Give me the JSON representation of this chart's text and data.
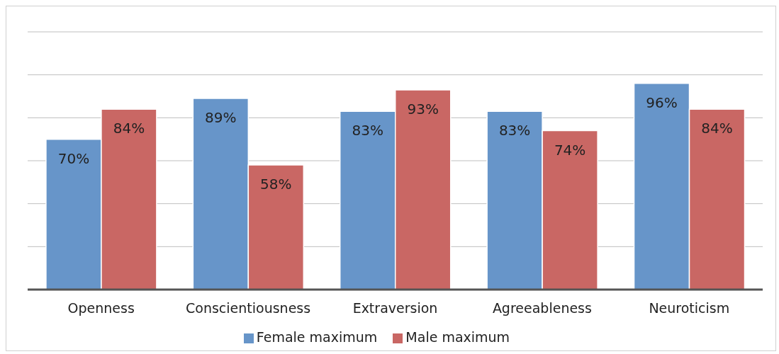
{
  "chart_data": {
    "type": "bar",
    "categories": [
      "Openness",
      "Conscientiousness",
      "Extraversion",
      "Agreeableness",
      "Neuroticism"
    ],
    "series": [
      {
        "name": "Female maximum",
        "color": "#6795c9",
        "values": [
          70,
          89,
          83,
          83,
          96
        ],
        "value_labels": [
          "70%",
          "89%",
          "83%",
          "83%",
          "96%"
        ]
      },
      {
        "name": "Male maximum",
        "color": "#c96764",
        "values": [
          84,
          58,
          93,
          74,
          84
        ],
        "value_labels": [
          "84%",
          "58%",
          "93%",
          "74%",
          "84%"
        ]
      }
    ],
    "ylim": [
      0,
      120
    ],
    "yticks": [
      {
        "value": 0,
        "label": null
      },
      {
        "value": 20,
        "label": null
      },
      {
        "value": 40,
        "label": null
      },
      {
        "value": 60,
        "label": null
      },
      {
        "value": 80,
        "label": null
      },
      {
        "value": 100,
        "label": null
      },
      {
        "value": 120,
        "label": null
      }
    ],
    "tick_labels": "x",
    "grid": "y",
    "legend": "bottom"
  }
}
